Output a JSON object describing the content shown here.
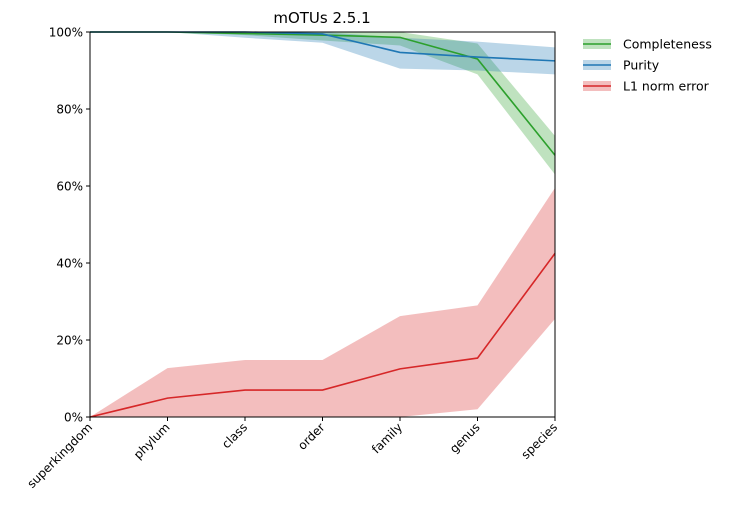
{
  "chart_data": {
    "type": "line",
    "title": "mOTUs 2.5.1",
    "xlabel": "",
    "ylabel": "",
    "categories": [
      "superkingdom",
      "phylum",
      "class",
      "order",
      "family",
      "genus",
      "species"
    ],
    "ylim": [
      0,
      100
    ],
    "y_ticks": [
      "0%",
      "20%",
      "40%",
      "60%",
      "80%",
      "100%"
    ],
    "grid": false,
    "legend_position": "outside-top-right",
    "series": [
      {
        "name": "Completeness",
        "color": "#2ca02c",
        "band_color": "#98df8a",
        "values": [
          100,
          100,
          99.6,
          99.2,
          98.6,
          93.0,
          68.0
        ],
        "lower": [
          100,
          100,
          99.2,
          97.8,
          96.5,
          89.0,
          63.0
        ],
        "upper": [
          100,
          100,
          100,
          100,
          100,
          97.0,
          73.0
        ]
      },
      {
        "name": "Purity",
        "color": "#1f77b4",
        "band_color": "#aec7e8",
        "values": [
          100,
          100,
          100,
          99.5,
          94.7,
          93.5,
          92.5
        ],
        "lower": [
          100,
          100,
          98.5,
          97.2,
          90.5,
          90.0,
          89.0
        ],
        "upper": [
          100,
          100,
          100,
          100,
          98.5,
          97.5,
          96.0
        ]
      },
      {
        "name": "L1 norm error",
        "color": "#d62728",
        "band_color": "#f2b3b4",
        "values": [
          0,
          4.9,
          7.0,
          7.0,
          12.5,
          15.3,
          42.5
        ],
        "lower": [
          0,
          0,
          0,
          0,
          0,
          2.0,
          25.5
        ],
        "upper": [
          0,
          12.7,
          14.8,
          14.8,
          26.2,
          29.0,
          59.5
        ]
      }
    ]
  }
}
